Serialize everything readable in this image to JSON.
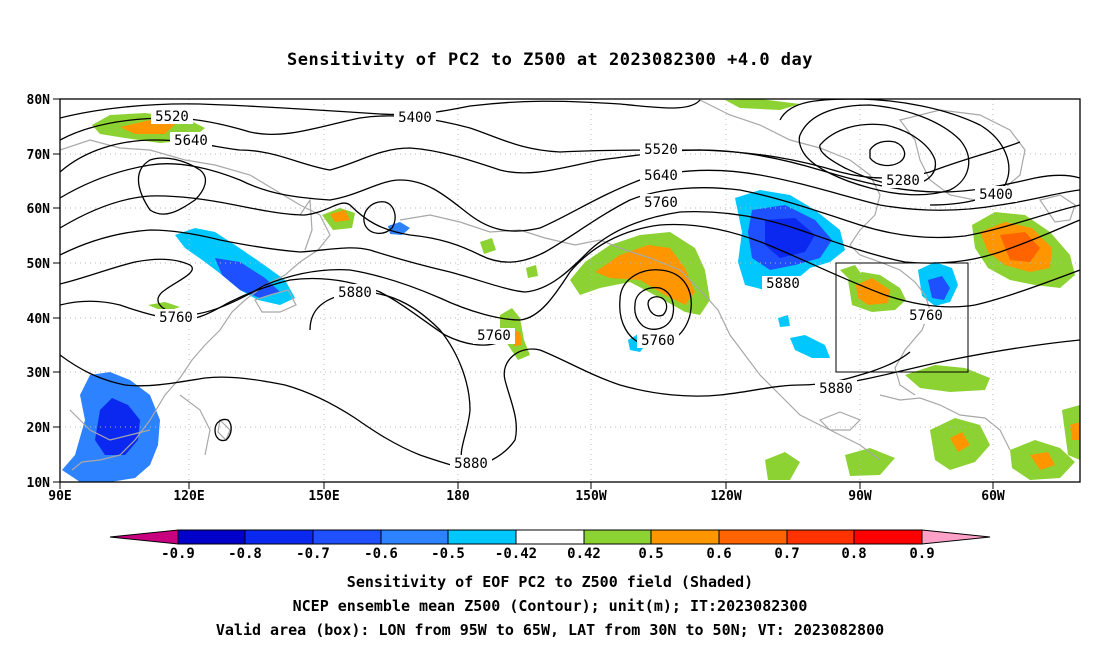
{
  "title": "Sensitivity of PC2 to Z500 at 2023082300 +4.0 day",
  "map": {
    "lat_labels": [
      "80N",
      "70N",
      "60N",
      "50N",
      "40N",
      "30N",
      "20N",
      "10N"
    ],
    "lon_labels": [
      "90E",
      "120E",
      "150E",
      "180",
      "150W",
      "120W",
      "90W",
      "60W"
    ],
    "contour_labels": [
      "5520",
      "5640",
      "5400",
      "5520",
      "5640",
      "5760",
      "5280",
      "5400",
      "5880",
      "5880",
      "5760",
      "5760",
      "5760",
      "5760",
      "5880",
      "5880"
    ],
    "valid_box": {
      "lon_west": -95,
      "lon_east": -65,
      "lat_south": 30,
      "lat_north": 50
    }
  },
  "colorbar": {
    "labels": [
      "-0.9",
      "-0.8",
      "-0.7",
      "-0.6",
      "-0.5",
      "-0.42",
      "0.42",
      "0.5",
      "0.6",
      "0.7",
      "0.8",
      "0.9"
    ],
    "colors": [
      "#c8007f",
      "#0000c8",
      "#0a28f0",
      "#1e50ff",
      "#2d82ff",
      "#00c8ff",
      "#ffffff",
      "#8cd232",
      "#ff9600",
      "#ff6400",
      "#ff3200",
      "#ff0000",
      "#ffa0c8"
    ]
  },
  "captions": {
    "line1": "Sensitivity of EOF PC2 to Z500 field (Shaded)",
    "line2": "NCEP ensemble mean Z500 (Contour); unit(m); IT:2023082300",
    "line3": "Valid area (box): LON from 95W to 65W, LAT from 30N to 50N; VT: 2023082800"
  }
}
